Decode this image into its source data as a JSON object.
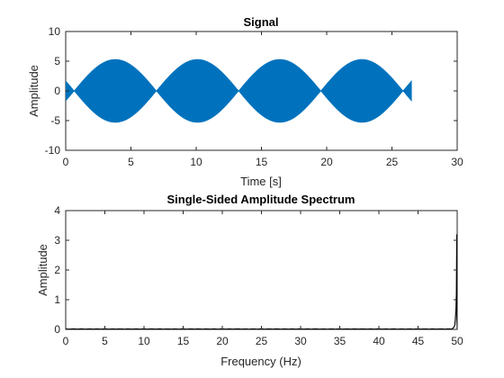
{
  "chart_data": [
    {
      "type": "area",
      "title": "Signal",
      "xlabel": "Time [s]",
      "ylabel": "Amplitude",
      "xlim": [
        0,
        30
      ],
      "ylim": [
        -10,
        10
      ],
      "xticks": [
        "0",
        "5",
        "10",
        "15",
        "20",
        "25",
        "30"
      ],
      "yticks": [
        "10",
        "5",
        "0",
        "-5",
        "-10"
      ],
      "grid": false,
      "series_color": "#0072BD",
      "envelope": {
        "t_start": 0,
        "t_end": 26.5,
        "peak_amplitude": 5.3,
        "nodes": [
          0.65,
          6.95,
          13.2,
          19.45,
          25.75
        ],
        "end_amplitude_at_start": 1.5,
        "end_amplitude_at_end": 1.6
      }
    },
    {
      "type": "line",
      "title": "Single-Sided Amplitude Spectrum",
      "xlabel": "Frequency (Hz)",
      "ylabel": "Amplitude",
      "xlim": [
        0,
        50
      ],
      "ylim": [
        0,
        4
      ],
      "xticks": [
        "0",
        "5",
        "10",
        "15",
        "20",
        "25",
        "30",
        "35",
        "40",
        "45",
        "50"
      ],
      "yticks": [
        "4",
        "3",
        "2",
        "1",
        "0"
      ],
      "grid": false,
      "series_color": "#000000",
      "peak": {
        "frequency": 49.95,
        "amplitude": 3.2
      },
      "noise_floor": 0.02
    }
  ]
}
